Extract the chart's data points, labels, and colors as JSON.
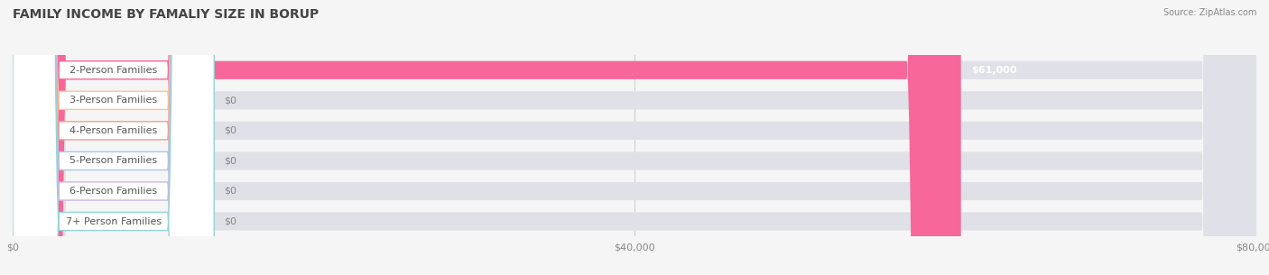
{
  "title": "FAMILY INCOME BY FAMALIY SIZE IN BORUP",
  "source": "Source: ZipAtlas.com",
  "categories": [
    "2-Person Families",
    "3-Person Families",
    "4-Person Families",
    "5-Person Families",
    "6-Person Families",
    "7+ Person Families"
  ],
  "values": [
    61000,
    0,
    0,
    0,
    0,
    0
  ],
  "bar_colors": [
    "#f7679a",
    "#f5c897",
    "#f0a090",
    "#adc4e8",
    "#c9b8e0",
    "#96d4d4"
  ],
  "value_labels": [
    "$61,000",
    "$0",
    "$0",
    "$0",
    "$0",
    "$0"
  ],
  "xlim": [
    0,
    80000
  ],
  "xticks": [
    0,
    40000,
    80000
  ],
  "xticklabels": [
    "$0",
    "$40,000",
    "$80,000"
  ],
  "background_color": "#f5f5f5",
  "title_fontsize": 10,
  "label_fontsize": 8,
  "value_fontsize": 8,
  "bar_height": 0.6
}
